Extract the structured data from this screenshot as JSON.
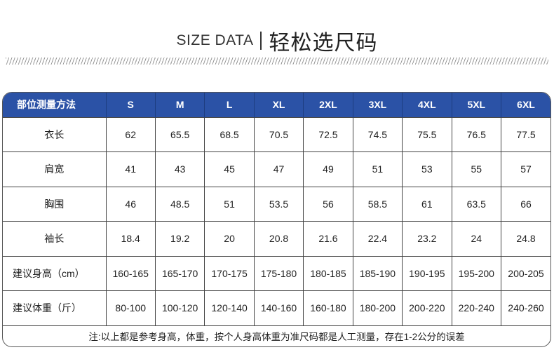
{
  "header": {
    "title_en": "SIZE DATA",
    "title_cn": "轻松选尺码"
  },
  "colors": {
    "header_bg": "#2b52a6"
  },
  "table": {
    "columns": [
      "部位测量方法",
      "S",
      "M",
      "L",
      "XL",
      "2XL",
      "3XL",
      "4XL",
      "5XL",
      "6XL"
    ],
    "rows": [
      {
        "label": "衣长",
        "values": [
          "62",
          "65.5",
          "68.5",
          "70.5",
          "72.5",
          "74.5",
          "75.5",
          "76.5",
          "77.5"
        ]
      },
      {
        "label": "肩宽",
        "values": [
          "41",
          "43",
          "45",
          "47",
          "49",
          "51",
          "53",
          "55",
          "57"
        ]
      },
      {
        "label": "胸围",
        "values": [
          "46",
          "48.5",
          "51",
          "53.5",
          "56",
          "58.5",
          "61",
          "63.5",
          "66"
        ]
      },
      {
        "label": "袖长",
        "values": [
          "18.4",
          "19.2",
          "20",
          "20.8",
          "21.6",
          "22.4",
          "23.2",
          "24",
          "24.8"
        ]
      },
      {
        "label": "建议身高（cm）",
        "values": [
          "160-165",
          "165-170",
          "170-175",
          "175-180",
          "180-185",
          "185-190",
          "190-195",
          "195-200",
          "200-205"
        ]
      },
      {
        "label": "建议体重（斤）",
        "values": [
          "80-100",
          "100-120",
          "120-140",
          "140-160",
          "160-180",
          "180-200",
          "200-220",
          "220-240",
          "240-260"
        ]
      }
    ],
    "note": "注:以上都是参考身高，体重，按个人身高体重为准尺码都是人工测量，存在1-2公分的误差"
  }
}
